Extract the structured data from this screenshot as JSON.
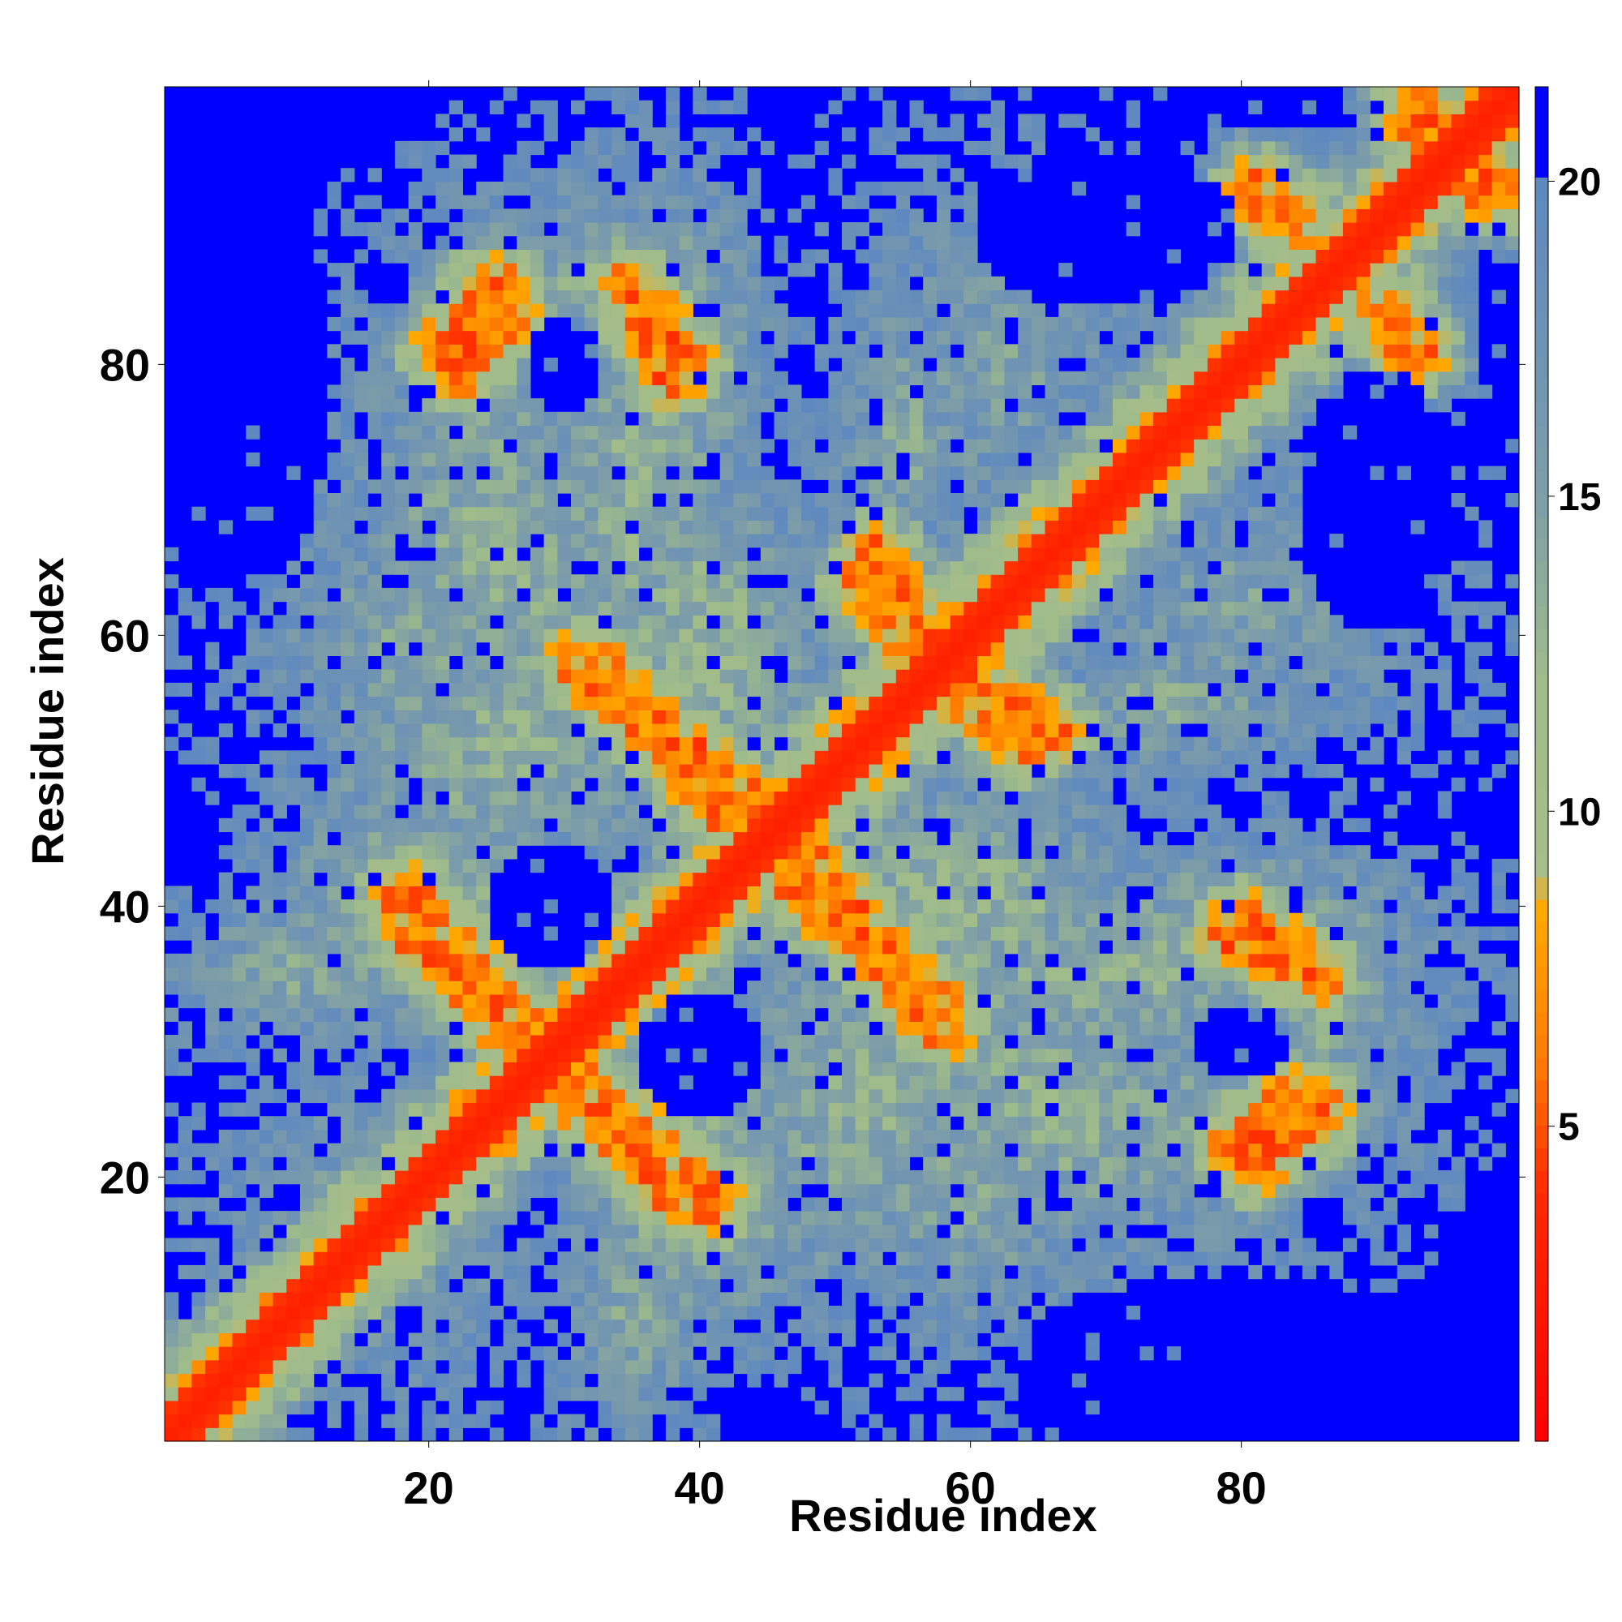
{
  "chart_data": {
    "type": "heatmap",
    "title": "",
    "xlabel": "Residue index",
    "ylabel": "Residue index",
    "xlim": [
      0.5,
      100.5
    ],
    "ylim": [
      0.5,
      100.5
    ],
    "n_residues": 100,
    "x_ticks": [
      20,
      40,
      60,
      80
    ],
    "y_ticks": [
      20,
      40,
      60,
      80
    ],
    "x_tick_labels": [
      "20",
      "40",
      "60",
      "80"
    ],
    "y_tick_labels": [
      "20",
      "40",
      "60",
      "80"
    ],
    "colorbar": {
      "range": [
        0,
        21.5
      ],
      "ticks": [
        5,
        10,
        15,
        20
      ],
      "tick_labels": [
        "5",
        "10",
        "15",
        "20"
      ],
      "saturation_color": "#0000ff",
      "stops": [
        {
          "value": 0,
          "color": "#ff0000"
        },
        {
          "value": 4,
          "color": "#ff2a00"
        },
        {
          "value": 6,
          "color": "#ff7a00"
        },
        {
          "value": 8.5,
          "color": "#ffaa00"
        },
        {
          "value": 9,
          "color": "#a7bd8a"
        },
        {
          "value": 12,
          "color": "#9fbc8a"
        },
        {
          "value": 15,
          "color": "#7e9ea7"
        },
        {
          "value": 20,
          "color": "#5e88c0"
        },
        {
          "value": 20.01,
          "color": "#0000ff"
        }
      ]
    },
    "contacts": {
      "diagonal_band_width": 2.2,
      "features": [
        {
          "x1": 27,
          "y1": 30,
          "x2": 38,
          "y2": 19,
          "width": 2.4,
          "value": 6.5
        },
        {
          "x1": 18,
          "y1": 41,
          "x2": 27,
          "y2": 31,
          "width": 2.4,
          "value": 6.5
        },
        {
          "x1": 31,
          "y1": 58,
          "x2": 43,
          "y2": 48,
          "width": 2.4,
          "value": 6.5
        },
        {
          "x1": 47,
          "y1": 42,
          "x2": 58,
          "y2": 32,
          "width": 2.4,
          "value": 6.5
        },
        {
          "x1": 52,
          "y1": 64,
          "x2": 57,
          "y2": 58,
          "width": 2.0,
          "value": 6.5
        },
        {
          "x1": 58,
          "y1": 57,
          "x2": 66,
          "y2": 53,
          "width": 2.0,
          "value": 6.5
        },
        {
          "x1": 21,
          "y1": 81,
          "x2": 25,
          "y2": 86,
          "width": 2.0,
          "value": 6.5
        },
        {
          "x1": 35,
          "y1": 86,
          "x2": 39,
          "y2": 80,
          "width": 2.0,
          "value": 6.5
        },
        {
          "x1": 79,
          "y1": 22,
          "x2": 84,
          "y2": 26,
          "width": 1.8,
          "value": 6.5
        },
        {
          "x1": 79,
          "y1": 38,
          "x2": 84,
          "y2": 35,
          "width": 1.8,
          "value": 6.5
        },
        {
          "x1": 81,
          "y1": 93,
          "x2": 84,
          "y2": 91,
          "width": 1.8,
          "value": 6.5
        },
        {
          "x1": 90,
          "y1": 84,
          "x2": 92,
          "y2": 81,
          "width": 1.6,
          "value": 6.5
        },
        {
          "x1": 93,
          "y1": 98,
          "x2": 99,
          "y2": 93,
          "width": 2.2,
          "value": 6.5
        }
      ],
      "medium_regions": [
        {
          "cx": 25,
          "cy": 65,
          "rx": 12,
          "ry": 20,
          "value": 13
        },
        {
          "cx": 35,
          "cy": 70,
          "rx": 8,
          "ry": 22,
          "value": 13
        },
        {
          "cx": 30,
          "cy": 85,
          "rx": 14,
          "ry": 10,
          "value": 14
        },
        {
          "cx": 20,
          "cy": 40,
          "rx": 10,
          "ry": 8,
          "value": 12
        },
        {
          "cx": 10,
          "cy": 35,
          "rx": 12,
          "ry": 6,
          "value": 14
        },
        {
          "cx": 52,
          "cy": 25,
          "rx": 12,
          "ry": 14,
          "value": 13
        },
        {
          "cx": 60,
          "cy": 20,
          "rx": 10,
          "ry": 14,
          "value": 14
        },
        {
          "cx": 58,
          "cy": 40,
          "rx": 14,
          "ry": 8,
          "value": 12
        },
        {
          "cx": 80,
          "cy": 38,
          "rx": 14,
          "ry": 7,
          "value": 13
        },
        {
          "cx": 80,
          "cy": 25,
          "rx": 10,
          "ry": 6,
          "value": 14
        },
        {
          "cx": 62,
          "cy": 80,
          "rx": 14,
          "ry": 18,
          "value": 15
        },
        {
          "cx": 15,
          "cy": 15,
          "rx": 12,
          "ry": 12,
          "value": 14
        },
        {
          "cx": 75,
          "cy": 55,
          "rx": 12,
          "ry": 6,
          "value": 14
        },
        {
          "cx": 85,
          "cy": 85,
          "rx": 10,
          "ry": 10,
          "value": 14
        },
        {
          "cx": 45,
          "cy": 55,
          "rx": 6,
          "ry": 8,
          "value": 14
        },
        {
          "cx": 65,
          "cy": 65,
          "rx": 10,
          "ry": 6,
          "value": 15
        }
      ],
      "empty_regions": [
        {
          "cx": 40,
          "cy": 29,
          "rx": 5,
          "ry": 4
        },
        {
          "cx": 29,
          "cy": 40,
          "rx": 5,
          "ry": 4
        },
        {
          "cx": 30,
          "cy": 80,
          "rx": 3,
          "ry": 4
        },
        {
          "cx": 80,
          "cy": 30,
          "rx": 4,
          "ry": 3
        },
        {
          "cx": 90,
          "cy": 70,
          "rx": 6,
          "ry": 10
        },
        {
          "cx": 70,
          "cy": 90,
          "rx": 10,
          "ry": 6
        },
        {
          "cx": 5,
          "cy": 80,
          "rx": 8,
          "ry": 18
        },
        {
          "cx": 80,
          "cy": 5,
          "rx": 18,
          "ry": 8
        },
        {
          "cx": 5,
          "cy": 5,
          "rx": 3,
          "ry": 3
        }
      ]
    }
  }
}
